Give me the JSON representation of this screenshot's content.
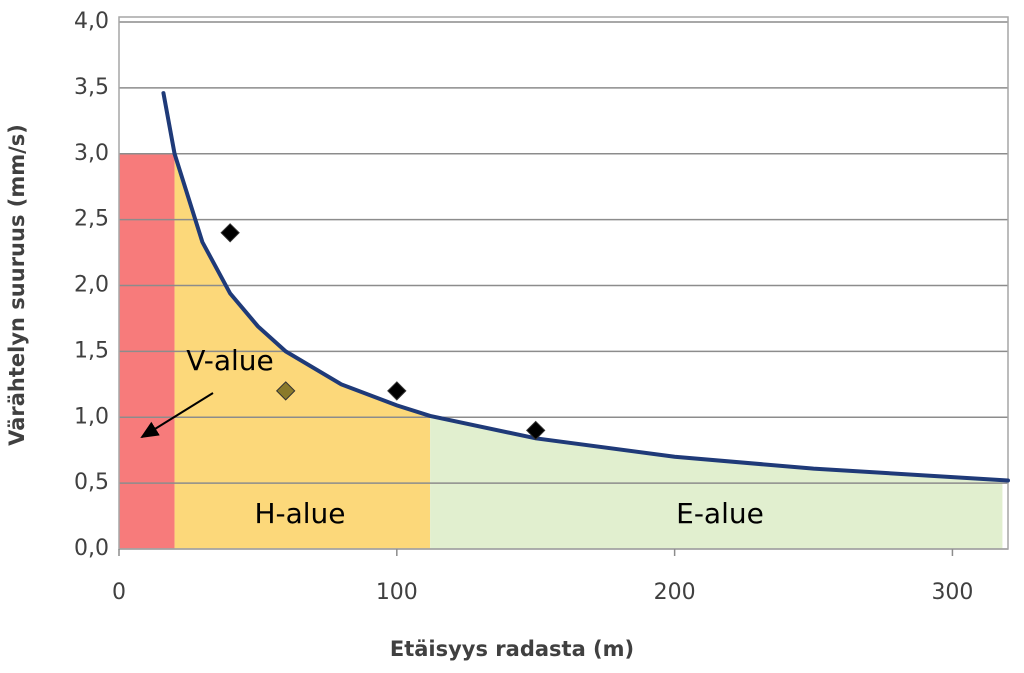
{
  "chart_data": {
    "type": "scatter",
    "x_label": "Etäisyys radasta (m)",
    "y_label": "Värähtelyn suuruus (mm/s)",
    "xlim": [
      0,
      320
    ],
    "xticks": [
      0,
      100,
      200,
      300
    ],
    "ylim": [
      0,
      4
    ],
    "yticks": [
      {
        "value": 0,
        "label": "0,0"
      },
      {
        "value": 0.5,
        "label": "0,5"
      },
      {
        "value": 1,
        "label": "1,0"
      },
      {
        "value": 1.5,
        "label": "1,5"
      },
      {
        "value": 2,
        "label": "2,0"
      },
      {
        "value": 2.5,
        "label": "2,5"
      },
      {
        "value": 3,
        "label": "3,0"
      },
      {
        "value": 3.5,
        "label": "3,5"
      },
      {
        "value": 4,
        "label": "4,0"
      }
    ],
    "grid": true,
    "curve": {
      "color": "#1f3a78",
      "x": [
        16,
        20,
        30,
        40,
        50,
        60,
        80,
        100,
        112,
        150,
        200,
        250,
        320
      ],
      "values": [
        3.46,
        3.0,
        2.33,
        1.94,
        1.69,
        1.5,
        1.25,
        1.09,
        1.01,
        0.84,
        0.7,
        0.61,
        0.52
      ]
    },
    "points": {
      "x": [
        40,
        60,
        100,
        150
      ],
      "values": [
        2.4,
        1.2,
        1.2,
        0.9
      ],
      "colors": [
        "#000000",
        "#8a7a2a",
        "#000000",
        "#000000"
      ]
    },
    "zones": [
      {
        "name": "V-alue",
        "color": "#f77b7b",
        "xlim": [
          0,
          20
        ],
        "ymax": 3
      },
      {
        "name": "H-alue",
        "color": "#fcd87a",
        "xlim": [
          20,
          112
        ]
      },
      {
        "name": "E-alue",
        "color": "#e1efcf",
        "xlim": [
          112,
          318
        ]
      }
    ]
  }
}
